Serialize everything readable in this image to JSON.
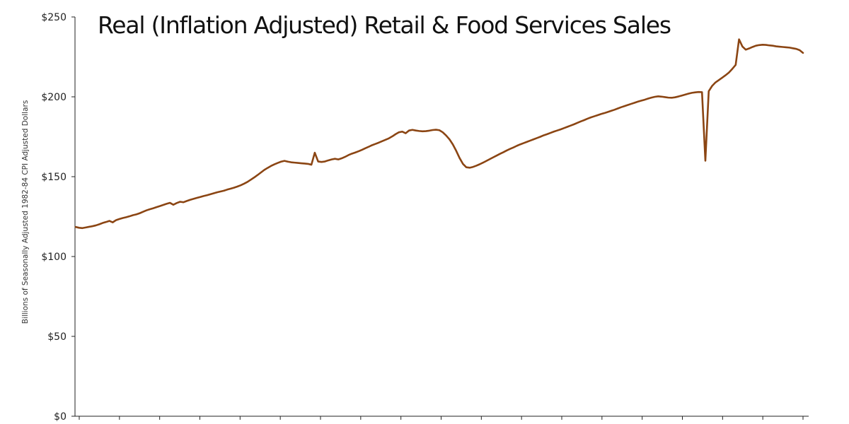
{
  "chart_data": {
    "type": "line",
    "title": "Real (Inflation Adjusted) Retail & Food Services Sales",
    "ylabel": "Billions of Seasonally Adjusted 1982-84 CPI Adjusted Dollars",
    "xlabel": "",
    "ylim": [
      0,
      250
    ],
    "yticks": [
      {
        "value": 0,
        "label": "$0"
      },
      {
        "value": 50,
        "label": "$50"
      },
      {
        "value": 100,
        "label": "$100"
      },
      {
        "value": 150,
        "label": "$150"
      },
      {
        "value": 200,
        "label": "$200"
      },
      {
        "value": 250,
        "label": "$250"
      }
    ],
    "grid": false,
    "line_color": "#8B4513",
    "series": [
      {
        "values": [
          118.5,
          118.0,
          117.8,
          118.2,
          118.6,
          119.0,
          119.5,
          120.2,
          121.0,
          121.6,
          122.3,
          121.4,
          122.8,
          123.5,
          124.1,
          124.6,
          125.2,
          125.9,
          126.4,
          127.1,
          128.0,
          128.9,
          129.6,
          130.2,
          130.9,
          131.6,
          132.3,
          133.0,
          133.6,
          132.4,
          133.5,
          134.3,
          134.0,
          134.8,
          135.5,
          136.1,
          136.7,
          137.3,
          137.9,
          138.4,
          139.0,
          139.6,
          140.2,
          140.7,
          141.2,
          141.9,
          142.5,
          143.1,
          143.8,
          144.6,
          145.6,
          146.7,
          148.1,
          149.5,
          151.0,
          152.6,
          154.2,
          155.5,
          156.7,
          157.7,
          158.6,
          159.4,
          159.9,
          159.4,
          159.0,
          158.8,
          158.6,
          158.4,
          158.2,
          158.0,
          157.5,
          165.0,
          159.5,
          159.2,
          159.5,
          160.2,
          160.8,
          161.2,
          160.8,
          161.5,
          162.4,
          163.5,
          164.4,
          165.1,
          165.9,
          166.8,
          167.8,
          168.7,
          169.7,
          170.5,
          171.3,
          172.2,
          173.1,
          174.0,
          175.2,
          176.6,
          177.8,
          178.2,
          177.2,
          178.9,
          179.3,
          178.9,
          178.6,
          178.4,
          178.5,
          178.8,
          179.2,
          179.4,
          179.1,
          177.8,
          175.8,
          173.4,
          170.2,
          166.2,
          161.7,
          158.0,
          155.9,
          155.6,
          156.1,
          156.9,
          157.8,
          158.8,
          159.9,
          161.0,
          162.1,
          163.2,
          164.3,
          165.3,
          166.4,
          167.4,
          168.3,
          169.3,
          170.2,
          171.0,
          171.8,
          172.6,
          173.4,
          174.2,
          175.0,
          175.9,
          176.6,
          177.4,
          178.2,
          178.9,
          179.6,
          180.4,
          181.2,
          182.0,
          182.8,
          183.7,
          184.6,
          185.4,
          186.3,
          187.1,
          187.8,
          188.5,
          189.2,
          189.8,
          190.5,
          191.2,
          191.9,
          192.7,
          193.5,
          194.2,
          194.9,
          195.6,
          196.3,
          197.0,
          197.6,
          198.2,
          198.9,
          199.5,
          200.0,
          200.3,
          200.1,
          199.8,
          199.5,
          199.4,
          199.7,
          200.2,
          200.8,
          201.4,
          202.0,
          202.5,
          202.8,
          203.0,
          202.9,
          160.0,
          203.5,
          206.8,
          209.0,
          210.5,
          212.0,
          213.5,
          215.2,
          217.5,
          220.0,
          236.0,
          231.5,
          229.5,
          230.3,
          231.2,
          232.0,
          232.4,
          232.6,
          232.5,
          232.2,
          232.0,
          231.6,
          231.4,
          231.2,
          231.0,
          230.8,
          230.4,
          230.0,
          229.2,
          227.5
        ]
      }
    ]
  }
}
